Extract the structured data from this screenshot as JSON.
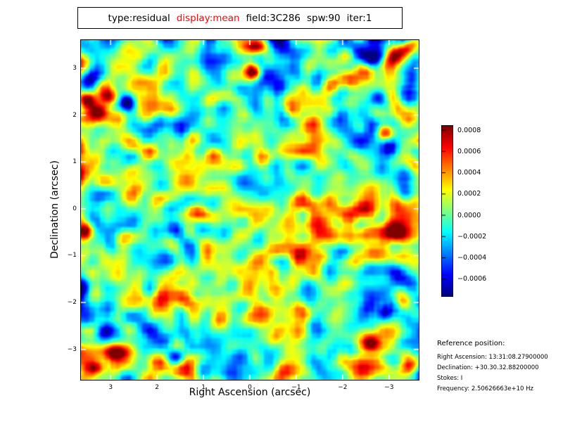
{
  "title": {
    "segments": [
      {
        "text": "type:residual",
        "color": "#000000"
      },
      {
        "text": "display:mean",
        "color": "#ff0000"
      },
      {
        "text": "field:3C286",
        "color": "#000000"
      },
      {
        "text": "spw:90",
        "color": "#000000"
      },
      {
        "text": "iter:1",
        "color": "#000000"
      }
    ]
  },
  "axes": {
    "xlabel": "Right Ascension (arcsec)",
    "ylabel": "Declination (arcsec)",
    "x_tick_labels": [
      "3",
      "2",
      "1",
      "0",
      "−1",
      "−2",
      "−3"
    ],
    "y_tick_labels": [
      "3",
      "2",
      "1",
      "0",
      "−1",
      "−2",
      "−3"
    ]
  },
  "colorbar": {
    "tick_labels": [
      "0.0008",
      "0.0006",
      "0.0004",
      "0.0002",
      "0.0000",
      "−0.0002",
      "−0.0004",
      "−0.0006"
    ]
  },
  "reference": {
    "title": "Reference position:",
    "right_ascension": "Right Ascension: 13:31:08.27900000",
    "declination": "Declination: +30.30.32.88200000",
    "stokes": "Stokes: I",
    "frequency": "Frequency: 2.50626663e+10 Hz"
  },
  "chart_data": {
    "type": "heatmap",
    "title": "type:residual  display:mean  field:3C286  spw:90  iter:1",
    "xlabel": "Right Ascension (arcsec)",
    "ylabel": "Declination (arcsec)",
    "xlim": [
      3.64,
      -3.64
    ],
    "ylim": [
      -3.65,
      3.6
    ],
    "x_ticks": [
      3,
      2,
      1,
      0,
      -1,
      -2,
      -3
    ],
    "y_ticks": [
      3,
      2,
      1,
      0,
      -1,
      -2,
      -3
    ],
    "grid": false,
    "colormap": "jet",
    "vmin": -0.00076,
    "vmax": 0.00084,
    "colorbar_ticks": [
      0.0008,
      0.0006,
      0.0004,
      0.0002,
      0.0,
      -0.0002,
      -0.0004,
      -0.0006
    ],
    "description": "Beam-correlated Gaussian residual noise map; rms ≈ 2e-4, background mottled cyan/green/yellow with isolated red (≈ +8e-4) and dark-blue (≈ −7e-4) peaks",
    "render": {
      "seed": 1337,
      "sigma_clip": 3.4,
      "octaves": [
        {
          "cell": 30,
          "blur": 1,
          "weight": 0.5
        },
        {
          "cell": 7.5,
          "blur": 2,
          "weight": 1.0
        }
      ],
      "features": [
        {
          "x": 0.95,
          "y": 0.03,
          "sx": 26,
          "sy": 8,
          "rot": -35,
          "a": 3.8
        },
        {
          "x": 0.865,
          "y": 0.05,
          "sx": 13,
          "sy": 10,
          "rot": 0,
          "a": -3.6
        },
        {
          "x": 0.975,
          "y": 0.115,
          "sx": 9,
          "sy": 12,
          "rot": 0,
          "a": -3.0
        },
        {
          "x": 0.025,
          "y": 0.115,
          "sx": 10,
          "sy": 9,
          "rot": 0,
          "a": -3.2
        },
        {
          "x": 0.015,
          "y": 0.175,
          "sx": 9,
          "sy": 8,
          "rot": 0,
          "a": 3.7
        },
        {
          "x": 0.05,
          "y": 0.21,
          "sx": 10,
          "sy": 9,
          "rot": 0,
          "a": 3.0
        },
        {
          "x": 0.08,
          "y": 0.165,
          "sx": 9,
          "sy": 8,
          "rot": 0,
          "a": 2.7
        },
        {
          "x": 0.14,
          "y": 0.185,
          "sx": 9,
          "sy": 8,
          "rot": 0,
          "a": -3.0
        },
        {
          "x": 0.52,
          "y": 0.02,
          "sx": 12,
          "sy": 7,
          "rot": 0,
          "a": 3.1
        },
        {
          "x": 0.51,
          "y": 0.095,
          "sx": 8,
          "sy": 7,
          "rot": 20,
          "a": 3.3
        },
        {
          "x": 0.9,
          "y": 0.27,
          "sx": 9,
          "sy": 8,
          "rot": 0,
          "a": 3.2
        },
        {
          "x": 0.955,
          "y": 0.425,
          "sx": 11,
          "sy": 16,
          "rot": 0,
          "a": -3.7
        },
        {
          "x": 0.88,
          "y": 0.17,
          "sx": 9,
          "sy": 8,
          "rot": 0,
          "a": -3.0
        },
        {
          "x": 0.01,
          "y": 0.56,
          "sx": 8,
          "sy": 9,
          "rot": 0,
          "a": 3.0
        },
        {
          "x": 0.0,
          "y": 0.72,
          "sx": 9,
          "sy": 11,
          "rot": 0,
          "a": -3.2
        },
        {
          "x": 0.95,
          "y": 0.77,
          "sx": 9,
          "sy": 10,
          "rot": 0,
          "a": 3.5
        },
        {
          "x": 0.9,
          "y": 0.8,
          "sx": 8,
          "sy": 8,
          "rot": 0,
          "a": -3.2
        },
        {
          "x": 0.11,
          "y": 0.92,
          "sx": 12,
          "sy": 8,
          "rot": 0,
          "a": 3.6
        },
        {
          "x": 0.07,
          "y": 0.855,
          "sx": 10,
          "sy": 9,
          "rot": 0,
          "a": -3.2
        },
        {
          "x": 0.28,
          "y": 0.93,
          "sx": 10,
          "sy": 8,
          "rot": 0,
          "a": -3.0
        },
        {
          "x": 0.045,
          "y": 0.965,
          "sx": 9,
          "sy": 7,
          "rot": 0,
          "a": 3.0
        },
        {
          "x": 0.97,
          "y": 0.96,
          "sx": 10,
          "sy": 8,
          "rot": 0,
          "a": 3.2
        },
        {
          "x": 0.86,
          "y": 0.895,
          "sx": 9,
          "sy": 8,
          "rot": 0,
          "a": 3.0
        },
        {
          "x": 0.93,
          "y": 0.56,
          "sx": 9,
          "sy": 9,
          "rot": 0,
          "a": 3.0
        }
      ]
    }
  }
}
